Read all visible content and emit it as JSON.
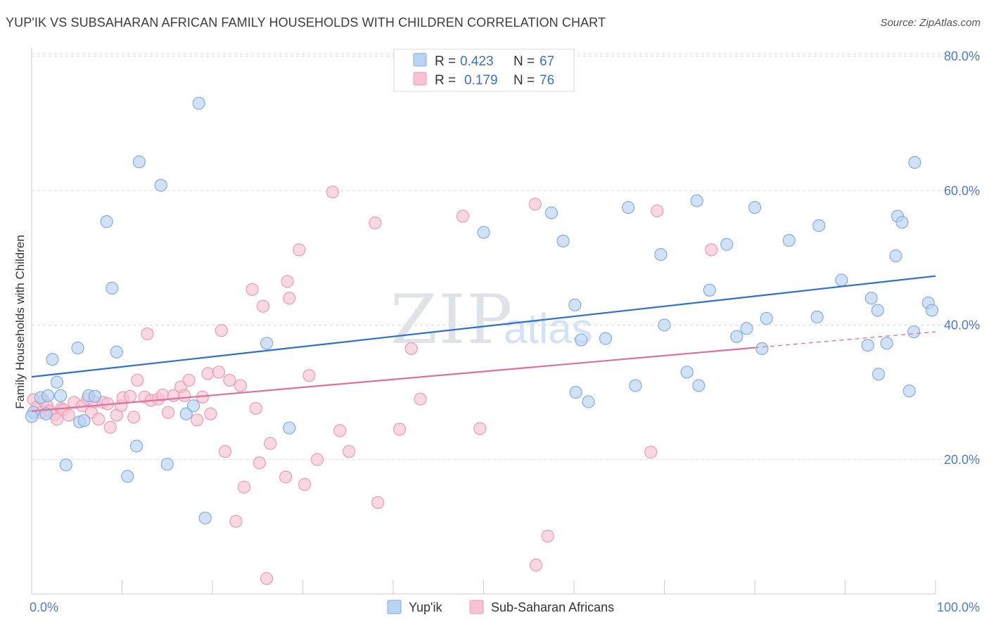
{
  "header": {
    "title": "YUP'IK VS SUBSAHARAN AFRICAN FAMILY HOUSEHOLDS WITH CHILDREN CORRELATION CHART",
    "source": "Source: ZipAtlas.com"
  },
  "watermark": {
    "part1": "ZIP",
    "part2": "atlas"
  },
  "legend": {
    "rows": [
      {
        "r_label": "R =",
        "r_value": "0.423",
        "n_label": "N =",
        "n_value": "67"
      },
      {
        "r_label": "R =",
        "r_value": "0.179",
        "n_label": "N =",
        "n_value": "76"
      }
    ]
  },
  "bottom_legend": {
    "series1": "Yup'ik",
    "series2": "Sub-Saharan Africans"
  },
  "colors": {
    "blue_fill": "#b9d3f2",
    "blue_stroke": "#7faee3",
    "blue_line": "#2f6fcf",
    "pink_fill": "#f7c3d2",
    "pink_stroke": "#ee9ab5",
    "pink_line": "#e07099",
    "grid": "#dcdcdc",
    "tick_label": "#4a7cc7"
  },
  "chart_data": {
    "type": "scatter",
    "title": "YUP'IK VS SUBSAHARAN AFRICAN FAMILY HOUSEHOLDS WITH CHILDREN CORRELATION CHART",
    "xlabel": "",
    "ylabel": "Family Households with Children",
    "xlim": [
      0,
      100
    ],
    "ylim": [
      0,
      80
    ],
    "x_ticks": [
      "0.0%",
      "100.0%"
    ],
    "y_ticks": [
      {
        "value": 20,
        "label": "20.0%"
      },
      {
        "value": 40,
        "label": "40.0%"
      },
      {
        "value": 60,
        "label": "60.0%"
      },
      {
        "value": 80,
        "label": "80.0%"
      }
    ],
    "grid": true,
    "legend_position": "top-center",
    "series": [
      {
        "name": "Yup'ik",
        "r": 0.423,
        "n": 67,
        "trend": {
          "x0": 0,
          "y0": 32.3,
          "x1": 100,
          "y1": 47.3,
          "dashed_from": null
        },
        "points": [
          [
            0.2,
            27.0
          ],
          [
            1.0,
            29.2
          ],
          [
            1.6,
            26.8
          ],
          [
            1.8,
            29.5
          ],
          [
            2.3,
            34.9
          ],
          [
            2.8,
            31.5
          ],
          [
            3.2,
            29.5
          ],
          [
            3.8,
            19.2
          ],
          [
            5.1,
            36.6
          ],
          [
            5.3,
            25.6
          ],
          [
            5.8,
            25.8
          ],
          [
            6.3,
            29.5
          ],
          [
            7.0,
            29.4
          ],
          [
            8.3,
            55.4
          ],
          [
            8.9,
            45.5
          ],
          [
            9.4,
            36.0
          ],
          [
            10.6,
            17.5
          ],
          [
            11.6,
            22.0
          ],
          [
            11.9,
            64.3
          ],
          [
            14.3,
            60.8
          ],
          [
            15.0,
            19.3
          ],
          [
            17.1,
            26.8
          ],
          [
            17.9,
            28.0
          ],
          [
            18.5,
            73.0
          ],
          [
            19.2,
            11.3
          ],
          [
            26.0,
            37.3
          ],
          [
            28.5,
            24.7
          ],
          [
            50.0,
            53.8
          ],
          [
            57.5,
            56.7
          ],
          [
            58.8,
            52.5
          ],
          [
            60.1,
            43.0
          ],
          [
            60.2,
            30.0
          ],
          [
            60.8,
            37.8
          ],
          [
            61.6,
            28.6
          ],
          [
            63.5,
            38.0
          ],
          [
            66.0,
            57.5
          ],
          [
            66.8,
            31.0
          ],
          [
            69.6,
            50.5
          ],
          [
            70.0,
            40.0
          ],
          [
            72.5,
            33.0
          ],
          [
            73.6,
            58.5
          ],
          [
            73.8,
            31.0
          ],
          [
            75.0,
            45.2
          ],
          [
            76.9,
            52.0
          ],
          [
            78.0,
            38.3
          ],
          [
            79.1,
            39.5
          ],
          [
            80.0,
            57.5
          ],
          [
            80.8,
            36.5
          ],
          [
            81.3,
            41.0
          ],
          [
            83.8,
            52.6
          ],
          [
            86.9,
            41.2
          ],
          [
            87.1,
            54.8
          ],
          [
            89.6,
            46.7
          ],
          [
            92.5,
            37.0
          ],
          [
            92.9,
            44.0
          ],
          [
            93.6,
            42.2
          ],
          [
            93.7,
            32.7
          ],
          [
            94.6,
            37.3
          ],
          [
            95.6,
            50.3
          ],
          [
            95.8,
            56.2
          ],
          [
            96.3,
            55.3
          ],
          [
            97.1,
            30.2
          ],
          [
            97.6,
            39.0
          ],
          [
            97.7,
            64.2
          ],
          [
            99.2,
            43.3
          ],
          [
            99.6,
            42.2
          ],
          [
            0.0,
            26.4
          ]
        ]
      },
      {
        "name": "Sub-Saharan Africans",
        "r": 0.179,
        "n": 76,
        "trend": {
          "x0": 0,
          "y0": 27.2,
          "x1": 100,
          "y1": 39.0,
          "dashed_from": 80
        },
        "points": [
          [
            0.2,
            28.9
          ],
          [
            0.6,
            27.8
          ],
          [
            1.0,
            27.0
          ],
          [
            1.3,
            28.8
          ],
          [
            1.7,
            28.0
          ],
          [
            2.0,
            27.2
          ],
          [
            2.6,
            26.7
          ],
          [
            2.8,
            26.0
          ],
          [
            3.3,
            27.6
          ],
          [
            3.5,
            27.4
          ],
          [
            4.1,
            26.6
          ],
          [
            4.7,
            28.5
          ],
          [
            5.6,
            28.0
          ],
          [
            6.2,
            29.0
          ],
          [
            6.6,
            27.0
          ],
          [
            6.9,
            28.6
          ],
          [
            7.4,
            26.0
          ],
          [
            7.9,
            28.5
          ],
          [
            8.4,
            28.3
          ],
          [
            8.7,
            24.8
          ],
          [
            9.4,
            26.6
          ],
          [
            9.9,
            28.0
          ],
          [
            10.1,
            29.2
          ],
          [
            10.9,
            29.4
          ],
          [
            11.3,
            26.3
          ],
          [
            11.7,
            31.8
          ],
          [
            12.5,
            29.3
          ],
          [
            12.8,
            38.7
          ],
          [
            13.2,
            28.8
          ],
          [
            14.0,
            29.0
          ],
          [
            14.5,
            29.6
          ],
          [
            15.1,
            27.0
          ],
          [
            15.7,
            29.5
          ],
          [
            16.5,
            30.8
          ],
          [
            16.9,
            29.5
          ],
          [
            17.4,
            31.8
          ],
          [
            18.3,
            25.9
          ],
          [
            18.9,
            29.3
          ],
          [
            19.5,
            32.8
          ],
          [
            19.8,
            26.8
          ],
          [
            20.7,
            33.0
          ],
          [
            21.0,
            39.2
          ],
          [
            21.4,
            21.2
          ],
          [
            21.9,
            31.8
          ],
          [
            22.6,
            10.8
          ],
          [
            23.1,
            31.0
          ],
          [
            23.5,
            15.9
          ],
          [
            24.4,
            45.3
          ],
          [
            24.8,
            27.6
          ],
          [
            25.2,
            19.5
          ],
          [
            25.6,
            42.8
          ],
          [
            26.0,
            2.3
          ],
          [
            26.4,
            22.4
          ],
          [
            28.1,
            17.4
          ],
          [
            28.3,
            46.5
          ],
          [
            28.5,
            44.0
          ],
          [
            29.6,
            51.2
          ],
          [
            30.2,
            16.3
          ],
          [
            30.7,
            32.5
          ],
          [
            31.6,
            20.0
          ],
          [
            33.3,
            59.8
          ],
          [
            34.1,
            24.3
          ],
          [
            35.1,
            21.2
          ],
          [
            38.0,
            55.2
          ],
          [
            38.3,
            13.6
          ],
          [
            40.7,
            24.5
          ],
          [
            42.0,
            36.5
          ],
          [
            43.0,
            29.0
          ],
          [
            47.7,
            56.2
          ],
          [
            49.6,
            24.6
          ],
          [
            55.8,
            4.3
          ],
          [
            55.7,
            58.0
          ],
          [
            57.1,
            8.6
          ],
          [
            69.2,
            57.0
          ],
          [
            68.5,
            21.1
          ],
          [
            75.2,
            51.2
          ]
        ]
      }
    ]
  }
}
